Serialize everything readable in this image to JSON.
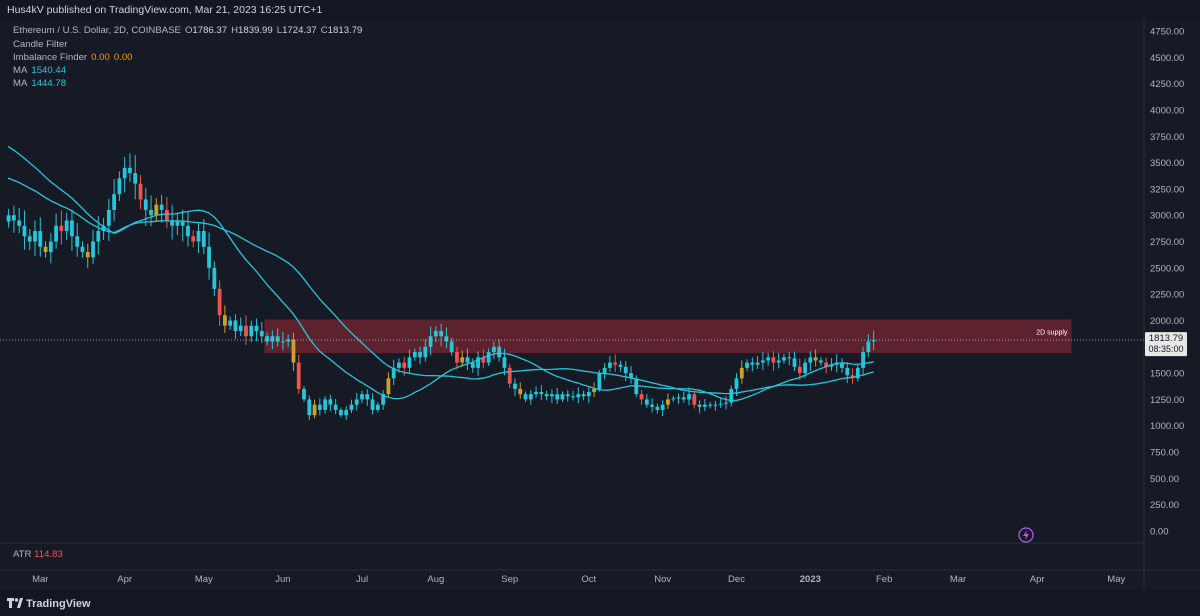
{
  "header": {
    "publish_line": "Hus4kV published on TradingView.com, Mar 21, 2023 16:25 UTC+1"
  },
  "legend": {
    "symbol": "Ethereum / U.S. Dollar, 2D, COINBASE",
    "open_label": "O",
    "open": "1786.37",
    "high_label": "H",
    "high": "1839.99",
    "low_label": "L",
    "low": "1724.37",
    "close_label": "C",
    "close": "1813.79",
    "candle_filter": "Candle Filter",
    "imbalance_label": "Imbalance Finder",
    "imbalance_v1": "0.00",
    "imbalance_v2": "0.00",
    "ma1_label": "MA",
    "ma1_value": "1540.44",
    "ma2_label": "MA",
    "ma2_value": "1444.78"
  },
  "price_tag": {
    "price": "1813.79",
    "countdown": "08:35:00"
  },
  "zone_label": "2D supply",
  "atr": {
    "label": "ATR",
    "value": "114.83"
  },
  "footer": {
    "brand": "TradingView"
  },
  "colors": {
    "up": "#26c6da",
    "down": "#ef5350",
    "filter": "#c9a227",
    "ma": "#26c6da",
    "zone": "#6b2430",
    "bg": "#161a25"
  },
  "chart_data": {
    "type": "candlestick",
    "title": "Ethereum / U.S. Dollar, 2D, COINBASE",
    "y_ticks": [
      "4750.00",
      "4500.00",
      "4250.00",
      "4000.00",
      "3750.00",
      "3500.00",
      "3250.00",
      "3000.00",
      "2750.00",
      "2500.00",
      "2250.00",
      "2000.00",
      "1750.00",
      "1500.00",
      "1250.00",
      "1000.00",
      "750.00",
      "500.00",
      "250.00",
      "0.00"
    ],
    "y_tick_values": [
      4750,
      4500,
      4250,
      4000,
      3750,
      3500,
      3250,
      3000,
      2750,
      2500,
      2250,
      2000,
      1750,
      1500,
      1250,
      1000,
      750,
      500,
      250,
      0
    ],
    "x_ticks": [
      "Mar",
      "Apr",
      "May",
      "Jun",
      "Jul",
      "Aug",
      "Sep",
      "Oct",
      "Nov",
      "Dec",
      "2023",
      "Feb",
      "Mar",
      "Apr",
      "May"
    ],
    "x_tick_index": [
      6,
      22,
      37,
      52,
      67,
      81,
      95,
      110,
      124,
      138,
      152,
      166,
      180,
      195,
      210
    ],
    "ylim": [
      0,
      4850
    ],
    "x_count": 215,
    "supply_zone": {
      "label": "2D supply",
      "from": 1690,
      "to": 2010,
      "start_index": 49,
      "end_index": 201
    },
    "closes": [
      3000,
      2950,
      2900,
      2800,
      2750,
      2850,
      2700,
      2650,
      2750,
      2900,
      2850,
      2950,
      2800,
      2700,
      2650,
      2600,
      2750,
      2850,
      2900,
      3050,
      3200,
      3350,
      3450,
      3400,
      3300,
      3150,
      3050,
      3000,
      3100,
      3050,
      2950,
      2900,
      2950,
      2900,
      2800,
      2750,
      2850,
      2700,
      2500,
      2300,
      2050,
      1950,
      2000,
      1900,
      1950,
      1850,
      1950,
      1900,
      1850,
      1800,
      1850,
      1800,
      1800,
      1820,
      1600,
      1350,
      1250,
      1100,
      1200,
      1150,
      1250,
      1200,
      1150,
      1100,
      1150,
      1200,
      1250,
      1300,
      1250,
      1150,
      1200,
      1300,
      1450,
      1550,
      1600,
      1550,
      1650,
      1700,
      1650,
      1750,
      1850,
      1900,
      1850,
      1800,
      1700,
      1600,
      1650,
      1600,
      1550,
      1650,
      1600,
      1700,
      1750,
      1650,
      1550,
      1400,
      1350,
      1300,
      1250,
      1300,
      1320,
      1300,
      1280,
      1300,
      1250,
      1300,
      1280,
      1270,
      1300,
      1280,
      1320,
      1350,
      1500,
      1550,
      1600,
      1580,
      1560,
      1500,
      1450,
      1300,
      1250,
      1200,
      1180,
      1150,
      1200,
      1250,
      1260,
      1270,
      1250,
      1300,
      1200,
      1180,
      1200,
      1190,
      1200,
      1210,
      1220,
      1350,
      1450,
      1550,
      1600,
      1580,
      1600,
      1620,
      1650,
      1600,
      1620,
      1650,
      1640,
      1560,
      1500,
      1600,
      1650,
      1620,
      1600,
      1560,
      1580,
      1600,
      1550,
      1480,
      1450,
      1550,
      1700,
      1800,
      1813.79
    ],
    "series": [
      {
        "name": "MA",
        "value": 1540.44
      },
      {
        "name": "MA",
        "value": 1444.78
      }
    ]
  }
}
